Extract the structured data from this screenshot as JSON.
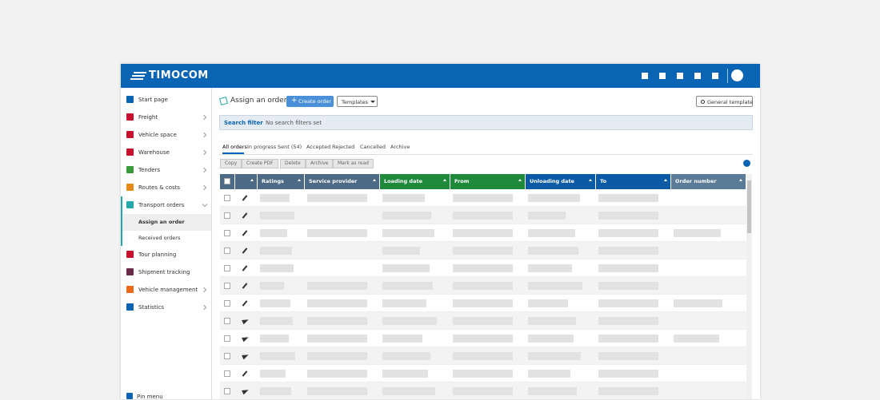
{
  "header": {
    "logo": "TIMOCOM"
  },
  "sidebar": {
    "items": [
      {
        "label": "Start page"
      },
      {
        "label": "Freight"
      },
      {
        "label": "Vehicle space"
      },
      {
        "label": "Warehouse"
      },
      {
        "label": "Tenders"
      },
      {
        "label": "Routes & costs"
      },
      {
        "label": "Transport orders",
        "children": [
          "Assign an order",
          "Received orders"
        ]
      },
      {
        "label": "Tour planning"
      },
      {
        "label": "Shipment tracking"
      },
      {
        "label": "Vehicle management"
      },
      {
        "label": "Statistics"
      }
    ],
    "pin": "Pin menu"
  },
  "toolbar": {
    "title": "Assign an order",
    "create": "Create order",
    "templates": "Templates",
    "general": "General template"
  },
  "search": {
    "label": "Search filter",
    "status": "No search filters set"
  },
  "tabs": [
    "All orders",
    "In progress",
    "Sent (54)",
    "Accepted",
    "Rejected",
    "Cancelled",
    "Archive"
  ],
  "actions": [
    "Copy",
    "Create PDF",
    "Delete",
    "Archive",
    "Mark as read"
  ],
  "table": {
    "columns": [
      "Ratings",
      "Service provider",
      "Loading date",
      "From",
      "Unloading date",
      "To",
      "Order number"
    ]
  }
}
